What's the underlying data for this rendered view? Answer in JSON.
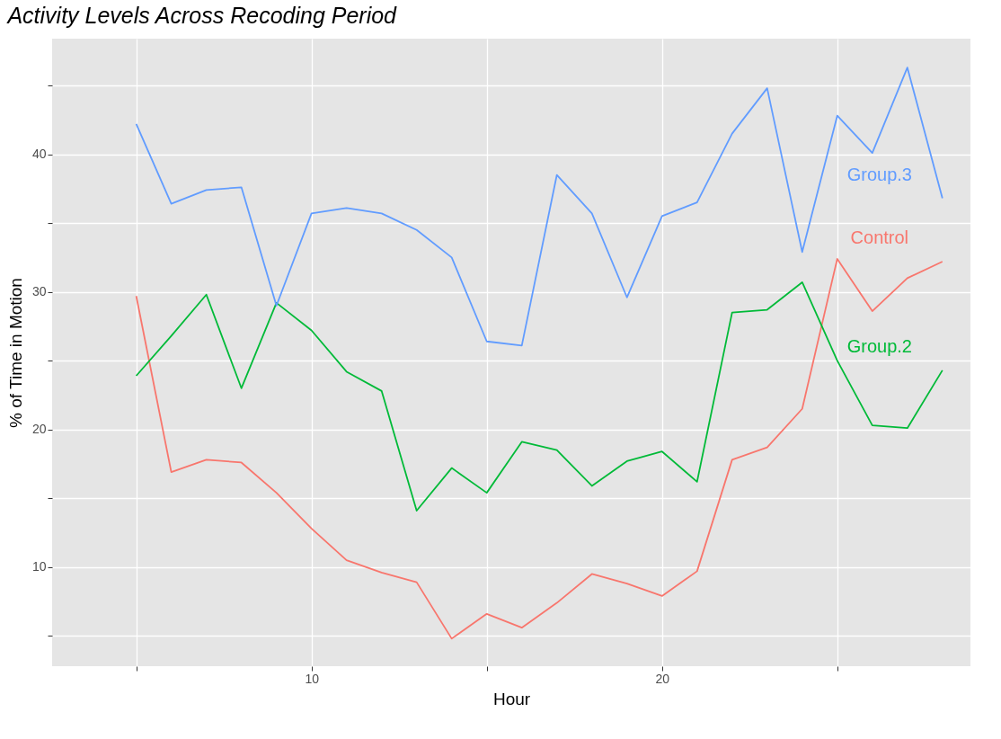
{
  "chart_data": {
    "type": "line",
    "title": "Activity Levels Across Recoding Period",
    "xlabel": "Hour",
    "ylabel": "% of Time in Motion",
    "x": [
      5,
      6,
      7,
      8,
      9,
      10,
      11,
      12,
      13,
      14,
      15,
      16,
      17,
      18,
      19,
      20,
      21,
      22,
      23,
      24,
      25,
      26,
      27,
      28
    ],
    "series": [
      {
        "name": "Control",
        "color": "#f8766d",
        "values": [
          29.7,
          16.9,
          17.8,
          17.6,
          15.4,
          12.8,
          10.5,
          9.6,
          8.9,
          4.8,
          6.6,
          5.6,
          7.4,
          9.5,
          8.8,
          7.9,
          9.7,
          17.8,
          18.7,
          21.5,
          32.4,
          28.6,
          31.0,
          32.2
        ]
      },
      {
        "name": "Group.2",
        "color": "#00ba38",
        "values": [
          23.9,
          26.8,
          29.8,
          23.0,
          29.2,
          27.2,
          24.2,
          22.8,
          14.1,
          17.2,
          15.4,
          19.1,
          18.5,
          15.9,
          17.7,
          18.4,
          16.2,
          28.5,
          28.7,
          30.7,
          25.0,
          20.3,
          20.1,
          24.3
        ]
      },
      {
        "name": "Group.3",
        "color": "#619cff",
        "values": [
          42.2,
          36.4,
          37.4,
          37.6,
          29.0,
          35.7,
          36.1,
          35.7,
          34.5,
          32.5,
          26.4,
          26.1,
          38.5,
          35.7,
          29.6,
          35.5,
          36.5,
          41.5,
          44.8,
          32.9,
          42.8,
          40.1,
          46.3,
          36.8
        ]
      }
    ],
    "xlim": [
      2.6,
      28.8
    ],
    "ylim": [
      2.8,
      48.4
    ],
    "xticks": [
      {
        "value": 5,
        "label": null
      },
      10,
      {
        "value": 15,
        "label": null
      },
      20,
      {
        "value": 25,
        "label": null
      }
    ],
    "yticks": [
      {
        "value": 5,
        "label": null
      },
      10,
      {
        "value": 15,
        "label": null
      },
      20,
      {
        "value": 25,
        "label": null
      },
      30,
      {
        "value": 35,
        "label": null
      },
      40,
      {
        "value": 45,
        "label": null
      }
    ],
    "grid": true,
    "legend": false,
    "marker": "none",
    "line_style": "solid"
  }
}
